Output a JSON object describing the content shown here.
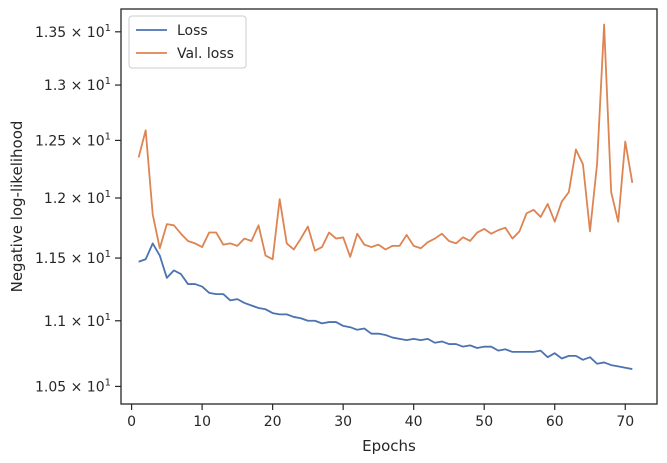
{
  "chart_data": {
    "type": "line",
    "xlabel": "Epochs",
    "ylabel": "Negative log-likelihood",
    "yscale": "log",
    "xlim": [
      -1.5,
      74.5
    ],
    "ylim": [
      10.37,
      13.72
    ],
    "grid": false,
    "legend_position": "top-left",
    "x_ticks": [
      0,
      10,
      20,
      30,
      40,
      50,
      60,
      70
    ],
    "x_tick_labels": [
      "0",
      "10",
      "20",
      "30",
      "40",
      "50",
      "60",
      "70"
    ],
    "y_ticks": [
      10.5,
      11.0,
      11.5,
      12.0,
      12.5,
      13.0,
      13.5
    ],
    "y_tick_labels": [
      {
        "mantissa": "1.05",
        "exp": "1"
      },
      {
        "mantissa": "1.1",
        "exp": "1"
      },
      {
        "mantissa": "1.15",
        "exp": "1"
      },
      {
        "mantissa": "1.2",
        "exp": "1"
      },
      {
        "mantissa": "1.25",
        "exp": "1"
      },
      {
        "mantissa": "1.3",
        "exp": "1"
      },
      {
        "mantissa": "1.35",
        "exp": "1"
      }
    ],
    "x": [
      1,
      2,
      3,
      4,
      5,
      6,
      7,
      8,
      9,
      10,
      11,
      12,
      13,
      14,
      15,
      16,
      17,
      18,
      19,
      20,
      21,
      22,
      23,
      24,
      25,
      26,
      27,
      28,
      29,
      30,
      31,
      32,
      33,
      34,
      35,
      36,
      37,
      38,
      39,
      40,
      41,
      42,
      43,
      44,
      45,
      46,
      47,
      48,
      49,
      50,
      51,
      52,
      53,
      54,
      55,
      56,
      57,
      58,
      59,
      60,
      61,
      62,
      63,
      64,
      65,
      66,
      67,
      68,
      69,
      70,
      71
    ],
    "series": [
      {
        "name": "Loss",
        "color": "#4c72b0",
        "values": [
          11.47,
          11.49,
          11.62,
          11.52,
          11.34,
          11.4,
          11.37,
          11.29,
          11.29,
          11.27,
          11.22,
          11.21,
          11.21,
          11.16,
          11.17,
          11.14,
          11.12,
          11.1,
          11.09,
          11.06,
          11.05,
          11.05,
          11.03,
          11.02,
          11.0,
          11.0,
          10.98,
          10.99,
          10.99,
          10.96,
          10.95,
          10.93,
          10.94,
          10.9,
          10.9,
          10.89,
          10.87,
          10.86,
          10.85,
          10.86,
          10.85,
          10.86,
          10.83,
          10.84,
          10.82,
          10.82,
          10.8,
          10.81,
          10.79,
          10.8,
          10.8,
          10.77,
          10.78,
          10.76,
          10.76,
          10.76,
          10.76,
          10.77,
          10.72,
          10.75,
          10.71,
          10.73,
          10.73,
          10.7,
          10.72,
          10.67,
          10.68,
          10.66,
          10.65,
          10.64,
          10.63
        ]
      },
      {
        "name": "Val. loss",
        "color": "#dd8452",
        "values": [
          12.35,
          12.59,
          11.86,
          11.58,
          11.78,
          11.77,
          11.7,
          11.64,
          11.62,
          11.59,
          11.71,
          11.71,
          11.61,
          11.62,
          11.6,
          11.66,
          11.64,
          11.77,
          11.52,
          11.49,
          11.99,
          11.62,
          11.57,
          11.66,
          11.76,
          11.56,
          11.59,
          11.71,
          11.66,
          11.67,
          11.51,
          11.7,
          11.61,
          11.59,
          11.61,
          11.57,
          11.6,
          11.6,
          11.69,
          11.6,
          11.58,
          11.63,
          11.66,
          11.7,
          11.64,
          11.62,
          11.67,
          11.64,
          11.71,
          11.74,
          11.7,
          11.73,
          11.75,
          11.66,
          11.72,
          11.87,
          11.9,
          11.84,
          11.95,
          11.8,
          11.97,
          12.05,
          12.42,
          12.29,
          11.72,
          12.29,
          13.57,
          12.05,
          11.8,
          12.49,
          12.13
        ]
      }
    ]
  }
}
